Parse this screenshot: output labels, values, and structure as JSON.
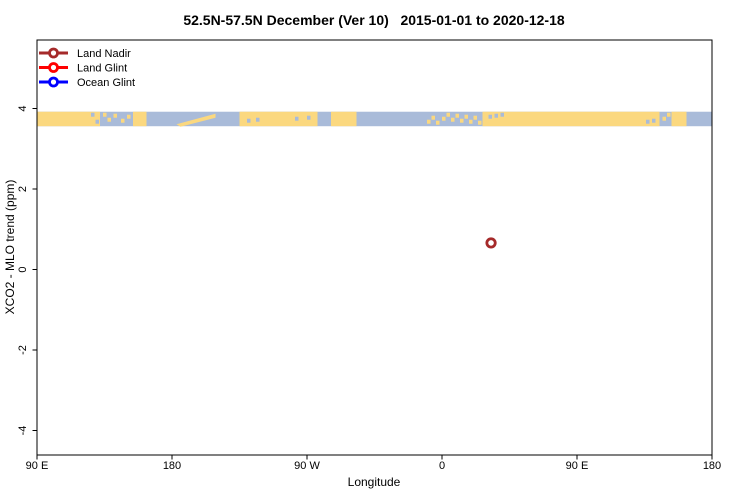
{
  "title": "52.5N-57.5N December (Ver 10)   2015-01-01 to 2020-12-18",
  "chart_data": {
    "type": "scatter",
    "title": "52.5N-57.5N December (Ver 10)   2015-01-01 to 2020-12-18",
    "xlabel": "Longitude",
    "ylabel": "XCO2 - MLO trend (ppm)",
    "grid": false,
    "legend_position": "top-left-inside",
    "x_axis": {
      "axis_range": [
        90,
        540
      ],
      "ticks": [
        90,
        180,
        270,
        360,
        450,
        540
      ],
      "tick_labels": [
        "90 E",
        "180",
        "90 W",
        "0",
        "90 E",
        "180"
      ]
    },
    "y_axis": {
      "range": [
        -4.6,
        5.7
      ],
      "ticks": [
        -4,
        -2,
        0,
        2,
        4
      ],
      "tick_labels": [
        "-4",
        "-2",
        "0",
        "2",
        "4"
      ]
    },
    "legend": {
      "entries": [
        {
          "label": "Land Nadir",
          "color": "#A52A2A"
        },
        {
          "label": "Land Glint",
          "color": "#FF0000"
        },
        {
          "label": "Ocean Glint",
          "color": "#0000FF"
        }
      ]
    },
    "series": [
      {
        "name": "Land Nadir",
        "color": "#A52A2A",
        "points": [
          {
            "lon_axis_deg": 392.7,
            "ppm": 0.66
          }
        ]
      },
      {
        "name": "Land Glint",
        "color": "#FF0000",
        "points": []
      },
      {
        "name": "Ocean Glint",
        "color": "#0000FF",
        "points": []
      }
    ],
    "map_band": {
      "description": "coastline strip of 52.5N-57.5N band drawn across top of plot",
      "land_color": "#FBD87F",
      "ocean_color": "#A9BBD9",
      "y_range_ppm": [
        3.56,
        3.92
      ],
      "ocean_base_deg": [
        90,
        540
      ],
      "land_segments_deg": [
        [
          90,
          132
        ],
        [
          154,
          163
        ],
        [
          225,
          277
        ],
        [
          286,
          303
        ],
        [
          387,
          505
        ],
        [
          513,
          523
        ]
      ],
      "coast_streaks_deg": [
        [
          183,
          209
        ]
      ],
      "land_specks_deg": [
        134,
        137,
        141,
        146,
        150,
        350,
        353,
        356,
        360,
        363,
        366,
        369,
        372,
        375,
        378,
        381,
        384,
        507,
        510
      ],
      "ocean_specks_deg": [
        126,
        129,
        230,
        236,
        262,
        270,
        391,
        395,
        399,
        496,
        500
      ]
    }
  }
}
